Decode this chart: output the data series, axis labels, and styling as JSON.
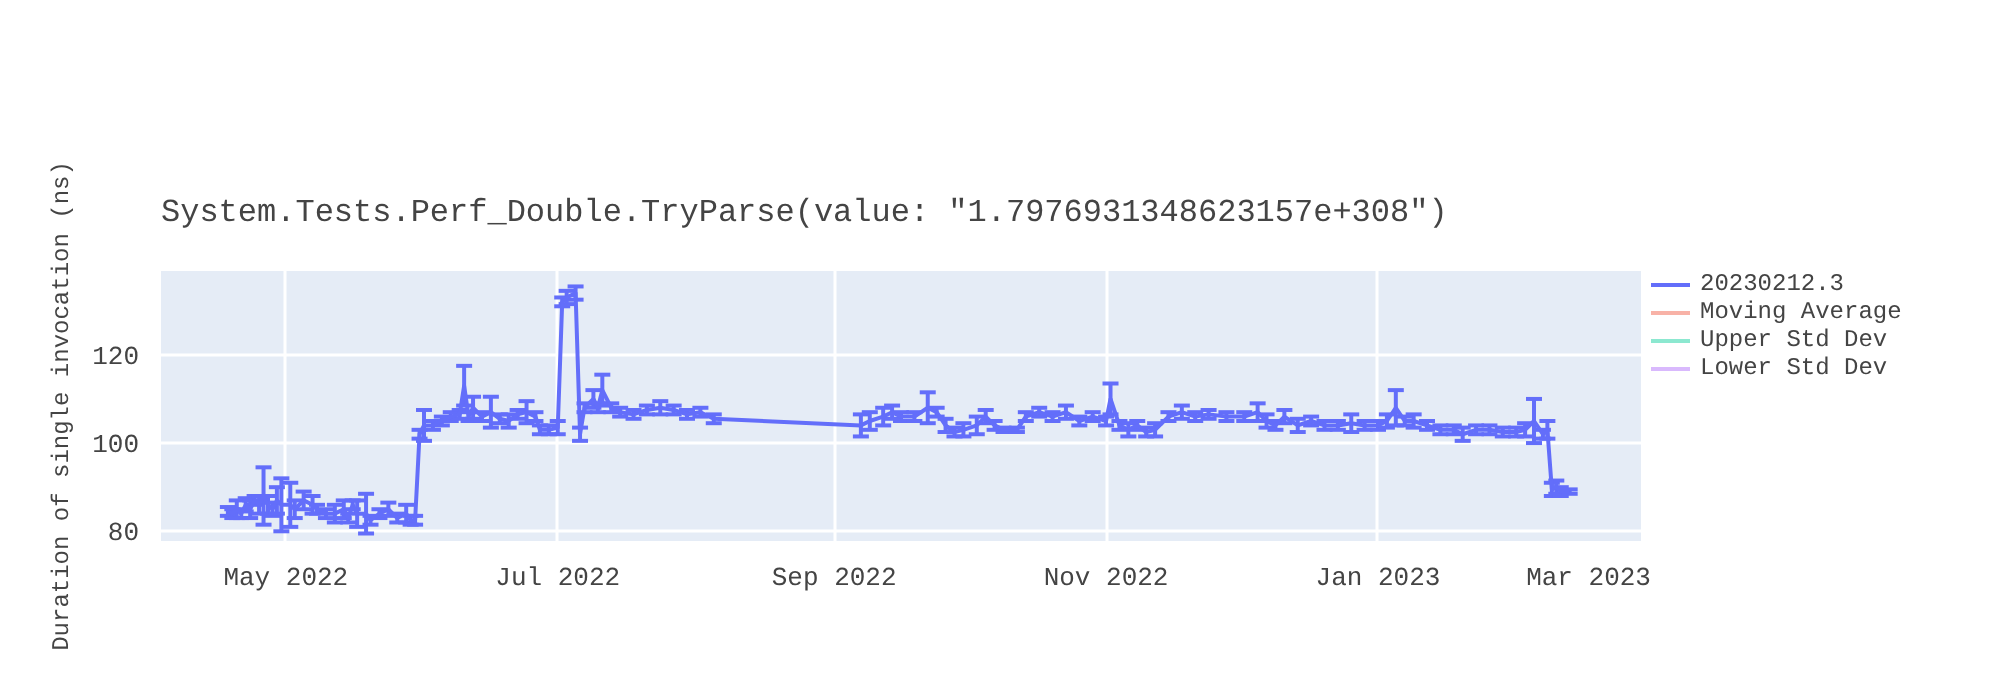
{
  "chart_data": {
    "type": "line",
    "title": "System.Tests.Perf_Double.TryParse(value: \"1.7976931348623157e+308\")",
    "ylabel": "Duration of single invocation (ns)",
    "x": [
      "2022-04-18",
      "2022-04-19",
      "2022-04-20",
      "2022-04-21",
      "2022-04-22",
      "2022-04-23",
      "2022-04-24",
      "2022-04-25",
      "2022-04-26",
      "2022-04-27",
      "2022-04-28",
      "2022-04-29",
      "2022-04-30",
      "2022-05-02",
      "2022-05-03",
      "2022-05-05",
      "2022-05-07",
      "2022-05-08",
      "2022-05-10",
      "2022-05-12",
      "2022-05-14",
      "2022-05-15",
      "2022-05-16",
      "2022-05-17",
      "2022-05-19",
      "2022-05-20",
      "2022-05-22",
      "2022-05-24",
      "2022-05-26",
      "2022-05-28",
      "2022-05-29",
      "2022-05-30",
      "2022-05-31",
      "2022-06-01",
      "2022-06-03",
      "2022-06-05",
      "2022-06-07",
      "2022-06-09",
      "2022-06-10",
      "2022-06-11",
      "2022-06-12",
      "2022-06-14",
      "2022-06-16",
      "2022-06-18",
      "2022-06-20",
      "2022-06-22",
      "2022-06-24",
      "2022-06-26",
      "2022-06-27",
      "2022-06-29",
      "2022-07-01",
      "2022-07-02",
      "2022-07-03",
      "2022-07-05",
      "2022-07-06",
      "2022-07-07",
      "2022-07-09",
      "2022-07-10",
      "2022-07-11",
      "2022-07-13",
      "2022-07-15",
      "2022-07-18",
      "2022-07-21",
      "2022-07-24",
      "2022-07-27",
      "2022-07-30",
      "2022-08-02",
      "2022-08-05",
      "2022-09-07",
      "2022-09-09",
      "2022-09-12",
      "2022-09-14",
      "2022-09-16",
      "2022-09-19",
      "2022-09-22",
      "2022-09-24",
      "2022-09-26",
      "2022-09-28",
      "2022-09-30",
      "2022-10-03",
      "2022-10-05",
      "2022-10-07",
      "2022-10-09",
      "2022-10-12",
      "2022-10-14",
      "2022-10-17",
      "2022-10-20",
      "2022-10-23",
      "2022-10-26",
      "2022-10-29",
      "2022-11-01",
      "2022-11-02",
      "2022-11-04",
      "2022-11-06",
      "2022-11-08",
      "2022-11-10",
      "2022-11-12",
      "2022-11-15",
      "2022-11-18",
      "2022-11-21",
      "2022-11-24",
      "2022-11-28",
      "2022-12-02",
      "2022-12-05",
      "2022-12-07",
      "2022-12-09",
      "2022-12-11",
      "2022-12-14",
      "2022-12-17",
      "2022-12-20",
      "2022-12-23",
      "2022-12-26",
      "2022-12-29",
      "2023-01-01",
      "2023-01-03",
      "2023-01-05",
      "2023-01-07",
      "2023-01-09",
      "2023-01-12",
      "2023-01-15",
      "2023-01-18",
      "2023-01-20",
      "2023-01-23",
      "2023-01-26",
      "2023-01-29",
      "2023-02-01",
      "2023-02-03",
      "2023-02-05",
      "2023-02-07",
      "2023-02-08",
      "2023-02-09",
      "2023-02-10",
      "2023-02-11",
      "2023-02-13"
    ],
    "series": [
      {
        "name": "20230212.3",
        "color": "#636efa",
        "values": [
          84.5,
          84,
          85,
          84,
          86,
          85,
          87,
          86,
          88,
          86,
          85,
          87,
          86,
          86,
          85,
          87,
          86,
          85,
          84,
          84,
          85,
          83,
          86,
          84,
          84,
          82.5,
          84,
          85,
          83,
          84,
          82.5,
          82.5,
          102,
          104,
          104,
          105,
          106,
          106.5,
          113,
          106,
          108,
          106,
          107,
          105.5,
          105,
          106.5,
          107,
          106,
          103,
          103,
          103.5,
          132,
          133,
          134,
          102,
          108,
          110,
          108,
          112,
          108,
          107,
          106.5,
          107.5,
          108,
          107.5,
          106.5,
          107,
          105.5,
          104,
          105,
          106,
          107,
          106,
          106,
          108,
          107,
          104,
          102.5,
          103,
          104,
          106,
          104,
          103,
          103,
          106,
          107,
          106,
          107,
          105,
          106,
          105,
          110,
          104,
          103,
          104,
          102.5,
          103,
          106,
          107,
          106,
          106.5,
          106,
          106,
          107,
          105,
          104,
          106,
          104,
          105,
          104,
          104,
          104.5,
          104,
          104,
          105,
          108,
          105,
          105,
          104,
          103,
          103,
          102,
          103,
          103,
          102.5,
          102.5,
          103,
          105,
          102,
          103,
          89.5,
          90,
          89,
          89
        ],
        "errors": [
          1,
          1,
          2,
          1,
          1.5,
          2,
          1,
          2,
          6.5,
          2,
          1.5,
          3,
          6,
          5,
          2,
          2,
          2,
          1,
          1,
          2,
          2,
          1,
          1,
          3,
          4.5,
          1,
          1,
          1.5,
          1,
          2,
          1,
          1,
          1,
          3.5,
          1,
          1,
          1,
          1,
          4.5,
          1,
          2.5,
          1,
          3.5,
          1,
          1.5,
          1,
          2.5,
          1,
          1,
          1,
          1.5,
          1,
          1.5,
          1.5,
          1.5,
          1,
          2,
          1,
          3.5,
          1,
          1,
          1,
          1,
          1.5,
          1,
          1,
          1,
          1,
          2.5,
          2,
          2,
          1.5,
          1,
          1,
          3.5,
          1,
          1.5,
          1,
          1.5,
          2,
          1.5,
          1,
          0.5,
          0.5,
          1,
          1,
          1,
          1.5,
          1,
          1,
          1,
          3.5,
          1,
          1.5,
          1,
          1,
          1.5,
          1,
          1.5,
          1,
          1,
          1,
          1,
          2,
          1.5,
          1,
          1.5,
          1.5,
          1,
          1,
          1,
          2,
          1,
          1,
          1.5,
          4,
          1,
          1.5,
          1,
          1,
          1,
          1.5,
          1,
          1,
          1,
          1,
          1.5,
          5,
          1,
          2,
          1.5,
          1.5,
          1,
          0.5
        ]
      },
      {
        "name": "Moving Average",
        "color": "#ef553b",
        "values": [
          null,
          null,
          null,
          null,
          null,
          null,
          null,
          null,
          null,
          null,
          null,
          null,
          null,
          null,
          null,
          null,
          null,
          null,
          null,
          null,
          null,
          null,
          null,
          null,
          null,
          null,
          null,
          null,
          null,
          null,
          null,
          null,
          null,
          null,
          null,
          null,
          null,
          null,
          null,
          null,
          null,
          null,
          null,
          null,
          null,
          null,
          null,
          null,
          null,
          null,
          null,
          null,
          null,
          null,
          null,
          null,
          null,
          null,
          null,
          null,
          null,
          null,
          null,
          null,
          null,
          null,
          null,
          null,
          null,
          null,
          null,
          null,
          null,
          null,
          null,
          null,
          null,
          null,
          null,
          null,
          null,
          null,
          null,
          null,
          null,
          null,
          null,
          null,
          null,
          null,
          null,
          null,
          null,
          null,
          null,
          null,
          null,
          null,
          null,
          null,
          null,
          null,
          null,
          null,
          null,
          null,
          null,
          null,
          null,
          null,
          null,
          null,
          null,
          null,
          null,
          null,
          null,
          null,
          null,
          null,
          null,
          null,
          null,
          null,
          null,
          null,
          null,
          null,
          null,
          null,
          null,
          null,
          null,
          null
        ]
      },
      {
        "name": "Upper Std Dev",
        "color": "#00cc96",
        "values": [
          null,
          null,
          null,
          null,
          null,
          null,
          null,
          null,
          null,
          null,
          null,
          null,
          null,
          null,
          null,
          null,
          null,
          null,
          null,
          null,
          null,
          null,
          null,
          null,
          null,
          null,
          null,
          null,
          null,
          null,
          null,
          null,
          null,
          null,
          null,
          null,
          null,
          null,
          null,
          null,
          null,
          null,
          null,
          null,
          null,
          null,
          null,
          null,
          null,
          null,
          null,
          null,
          null,
          null,
          null,
          null,
          null,
          null,
          null,
          null,
          null,
          null,
          null,
          null,
          null,
          null,
          null,
          null,
          null,
          null,
          null,
          null,
          null,
          null,
          null,
          null,
          null,
          null,
          null,
          null,
          null,
          null,
          null,
          null,
          null,
          null,
          null,
          null,
          null,
          null,
          null,
          null,
          null,
          null,
          null,
          null,
          null,
          null,
          null,
          null,
          null,
          null,
          null,
          null,
          null,
          null,
          null,
          null,
          null,
          null,
          null,
          null,
          null,
          null,
          null,
          null,
          null,
          null,
          null,
          null,
          null,
          null,
          null,
          null,
          null,
          null,
          null,
          null,
          null,
          null,
          null,
          null,
          null,
          null
        ]
      },
      {
        "name": "Lower Std Dev",
        "color": "#ab63fa",
        "values": [
          null,
          null,
          null,
          null,
          null,
          null,
          null,
          null,
          null,
          null,
          null,
          null,
          null,
          null,
          null,
          null,
          null,
          null,
          null,
          null,
          null,
          null,
          null,
          null,
          null,
          null,
          null,
          null,
          null,
          null,
          null,
          null,
          null,
          null,
          null,
          null,
          null,
          null,
          null,
          null,
          null,
          null,
          null,
          null,
          null,
          null,
          null,
          null,
          null,
          null,
          null,
          null,
          null,
          null,
          null,
          null,
          null,
          null,
          null,
          null,
          null,
          null,
          null,
          null,
          null,
          null,
          null,
          null,
          null,
          null,
          null,
          null,
          null,
          null,
          null,
          null,
          null,
          null,
          null,
          null,
          null,
          null,
          null,
          null,
          null,
          null,
          null,
          null,
          null,
          null,
          null,
          null,
          null,
          null,
          null,
          null,
          null,
          null,
          null,
          null,
          null,
          null,
          null,
          null,
          null,
          null,
          null,
          null,
          null,
          null,
          null,
          null,
          null,
          null,
          null,
          null,
          null,
          null,
          null,
          null,
          null,
          null,
          null,
          null,
          null,
          null,
          null,
          null,
          null,
          null,
          null,
          null,
          null,
          null
        ]
      }
    ],
    "xlim": [
      "2022-04-03",
      "2023-03-01"
    ],
    "xticks": [
      {
        "value": "2022-05-01",
        "label": "May 2022"
      },
      {
        "value": "2022-07-01",
        "label": "Jul 2022"
      },
      {
        "value": "2022-09-01",
        "label": "Sep 2022"
      },
      {
        "value": "2022-11-01",
        "label": "Nov 2022"
      },
      {
        "value": "2023-01-01",
        "label": "Jan 2023"
      },
      {
        "value": "2023-03-01",
        "label": "Mar 2023"
      }
    ],
    "ylim": [
      77.8,
      139
    ],
    "yticks": [
      80,
      100,
      120
    ],
    "grid": true,
    "legend": "right",
    "line_style": "solid"
  }
}
